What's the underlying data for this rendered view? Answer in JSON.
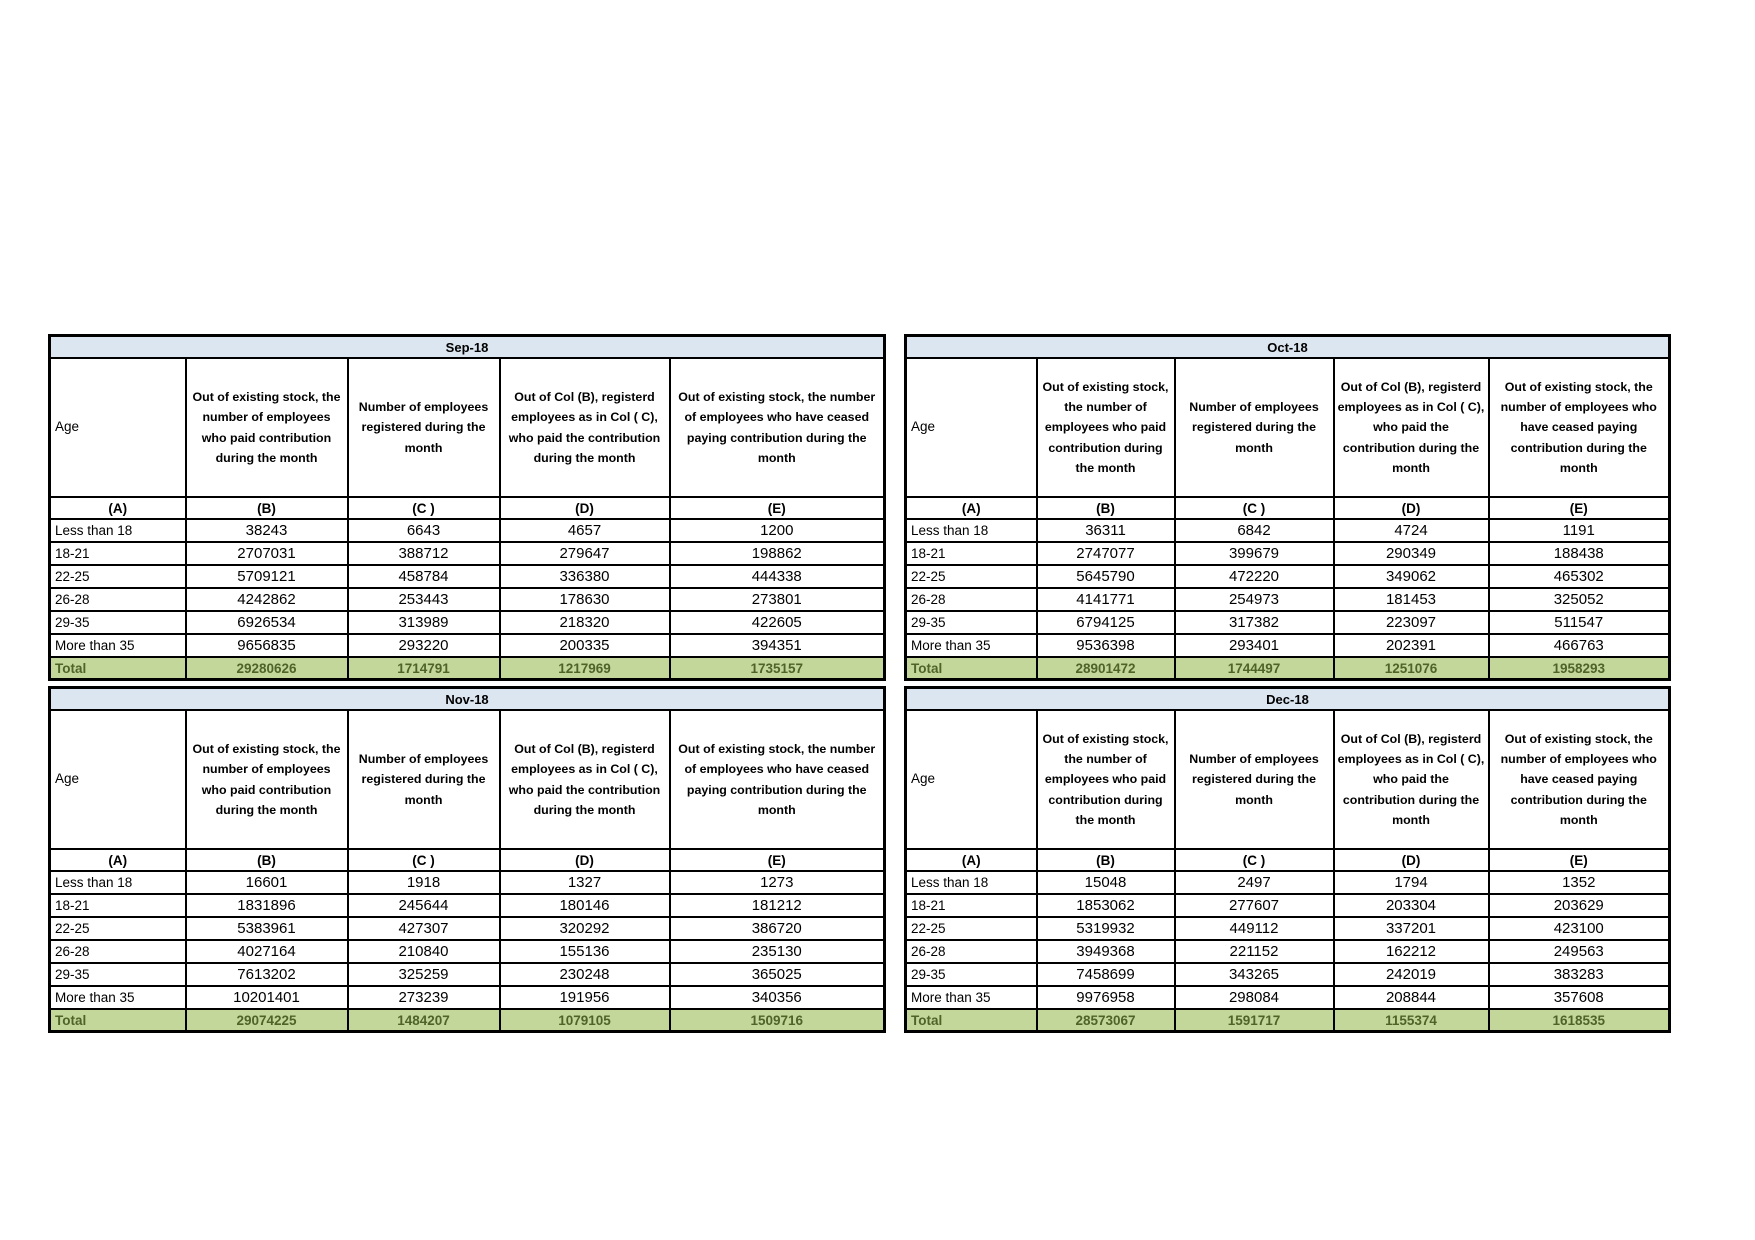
{
  "headers": {
    "age": "Age",
    "b": "Out of existing stock, the number of employees who paid contribution during the month",
    "c": "Number of employees registered during the month",
    "d": "Out of Col (B), registerd employees as in Col ( C), who paid the contribution during the month",
    "e": "Out of existing stock, the number of employees  who have ceased paying contribution during the month",
    "letters": [
      "(A)",
      "(B)",
      "(C )",
      "(D)",
      "(E)"
    ]
  },
  "labels": {
    "total": "Total"
  },
  "colors": {
    "title_bg": "#DCE6F1",
    "total_bg": "#C4D79B",
    "total_text": "#4F6228",
    "border": "#000000"
  },
  "tables": [
    {
      "title": "Sep-18",
      "rows": [
        {
          "age": "Less than 18",
          "values": [
            "38243",
            "6643",
            "4657",
            "1200"
          ]
        },
        {
          "age": "18-21",
          "values": [
            "2707031",
            "388712",
            "279647",
            "198862"
          ]
        },
        {
          "age": "22-25",
          "values": [
            "5709121",
            "458784",
            "336380",
            "444338"
          ]
        },
        {
          "age": "26-28",
          "values": [
            "4242862",
            "253443",
            "178630",
            "273801"
          ]
        },
        {
          "age": "29-35",
          "values": [
            "6926534",
            "313989",
            "218320",
            "422605"
          ]
        },
        {
          "age": "More than 35",
          "values": [
            "9656835",
            "293220",
            "200335",
            "394351"
          ]
        }
      ],
      "total": [
        "29280626",
        "1714791",
        "1217969",
        "1735157"
      ]
    },
    {
      "title": "Oct-18",
      "rows": [
        {
          "age": "Less than 18",
          "values": [
            "36311",
            "6842",
            "4724",
            "1191"
          ]
        },
        {
          "age": "18-21",
          "values": [
            "2747077",
            "399679",
            "290349",
            "188438"
          ]
        },
        {
          "age": "22-25",
          "values": [
            "5645790",
            "472220",
            "349062",
            "465302"
          ]
        },
        {
          "age": "26-28",
          "values": [
            "4141771",
            "254973",
            "181453",
            "325052"
          ]
        },
        {
          "age": "29-35",
          "values": [
            "6794125",
            "317382",
            "223097",
            "511547"
          ]
        },
        {
          "age": "More than 35",
          "values": [
            "9536398",
            "293401",
            "202391",
            "466763"
          ]
        }
      ],
      "total": [
        "28901472",
        "1744497",
        "1251076",
        "1958293"
      ]
    },
    {
      "title": "Nov-18",
      "rows": [
        {
          "age": "Less than 18",
          "values": [
            "16601",
            "1918",
            "1327",
            "1273"
          ]
        },
        {
          "age": "18-21",
          "values": [
            "1831896",
            "245644",
            "180146",
            "181212"
          ]
        },
        {
          "age": "22-25",
          "values": [
            "5383961",
            "427307",
            "320292",
            "386720"
          ]
        },
        {
          "age": "26-28",
          "values": [
            "4027164",
            "210840",
            "155136",
            "235130"
          ]
        },
        {
          "age": "29-35",
          "values": [
            "7613202",
            "325259",
            "230248",
            "365025"
          ]
        },
        {
          "age": "More than 35",
          "values": [
            "10201401",
            "273239",
            "191956",
            "340356"
          ]
        }
      ],
      "total": [
        "29074225",
        "1484207",
        "1079105",
        "1509716"
      ]
    },
    {
      "title": "Dec-18",
      "rows": [
        {
          "age": "Less than 18",
          "values": [
            "15048",
            "2497",
            "1794",
            "1352"
          ]
        },
        {
          "age": "18-21",
          "values": [
            "1853062",
            "277607",
            "203304",
            "203629"
          ]
        },
        {
          "age": "22-25",
          "values": [
            "5319932",
            "449112",
            "337201",
            "423100"
          ]
        },
        {
          "age": "26-28",
          "values": [
            "3949368",
            "221152",
            "162212",
            "249563"
          ]
        },
        {
          "age": "29-35",
          "values": [
            "7458699",
            "343265",
            "242019",
            "383283"
          ]
        },
        {
          "age": "More than 35",
          "values": [
            "9976958",
            "298084",
            "208844",
            "357608"
          ]
        }
      ],
      "total": [
        "28573067",
        "1591717",
        "1155374",
        "1618535"
      ]
    }
  ]
}
